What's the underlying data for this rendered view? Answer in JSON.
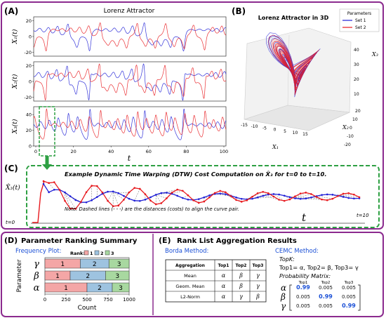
{
  "panelA": {
    "tag": "(A)",
    "title": "Lorenz Attractor",
    "xlabel": "t",
    "xticks": [
      "0",
      "20",
      "40",
      "60",
      "80",
      "100"
    ],
    "rows": [
      {
        "ylabel": "X₁(t)",
        "yticks": [
          "20",
          "0",
          "-20"
        ],
        "ylim": [
          -25,
          25
        ]
      },
      {
        "ylabel": "X₂(t)",
        "yticks": [
          "20",
          "0",
          "-20"
        ],
        "ylim": [
          -25,
          25
        ]
      },
      {
        "ylabel": "X₃(t)",
        "yticks": [
          "40",
          "20",
          "0"
        ],
        "ylim": [
          0,
          50
        ]
      }
    ]
  },
  "panelB": {
    "tag": "(B)",
    "title": "Lorenz Attractor in 3D",
    "legend_title": "Parameters",
    "legend": [
      "Set 1",
      "Set 2"
    ],
    "x1_label": "X₁",
    "x2_label": "X₂",
    "x3_label": "X₃",
    "x1_ticks": [
      "-15",
      "-10",
      "-5",
      "0",
      "5",
      "10",
      "15"
    ],
    "x2_ticks": [
      "20",
      "10",
      "0",
      "-10",
      "-20"
    ],
    "x3_ticks": [
      "10",
      "20",
      "30",
      "40"
    ]
  },
  "panelC": {
    "tag": "(C)",
    "title": "Example Dynamic Time Warping (DTW) Cost Computation on X̂₃ for t=0 to t=10.",
    "ylabel": "X̂₃(t)",
    "note": "Note: Dashed lines (- - -) are the distances (costs) to align the curve pair.",
    "t_label": "t",
    "t0": "t=0",
    "t10": "t=10"
  },
  "panelD": {
    "tag": "(D)",
    "title": "Parameter Ranking Summary",
    "subtitle": "Frequency Plot:",
    "legend_label": "Rank:",
    "legend": [
      "1",
      "2",
      "3"
    ],
    "ylabel": "Parameter",
    "xlabel": "Count",
    "xticks": [
      "0",
      "250",
      "500",
      "750",
      "1000"
    ],
    "rows": [
      {
        "name": "γ",
        "segments": [
          420,
          340,
          240
        ],
        "labels": [
          "1",
          "2",
          "3"
        ]
      },
      {
        "name": "β",
        "segments": [
          300,
          420,
          280
        ],
        "labels": [
          "1",
          "2",
          "3"
        ]
      },
      {
        "name": "α",
        "segments": [
          500,
          300,
          200
        ],
        "labels": [
          "1",
          "2",
          "3"
        ]
      }
    ],
    "colors": [
      "#f4a6a6",
      "#9ec3e0",
      "#a8d8a0"
    ]
  },
  "panelE": {
    "tag": "(E)",
    "title": "Rank List Aggregation Results",
    "borda_title": "Borda Method:",
    "table_headers": [
      "Aggregation",
      "Top1",
      "Top2",
      "Top3"
    ],
    "table_rows": [
      [
        "Mean",
        "α",
        "β",
        "γ"
      ],
      [
        "Geom. Mean",
        "α",
        "β",
        "γ"
      ],
      [
        "L2-Norm",
        "α",
        "γ",
        "β"
      ]
    ],
    "cemc_title": "CEMC Method:",
    "topk_label": "TopK:",
    "topk_text": "Top1= α, Top2= β, Top3= γ",
    "prob_label": "Probability Matrix:",
    "matrix_cols": [
      "Top1",
      "Top2",
      "Top3"
    ],
    "matrix_rows": [
      {
        "name": "α",
        "values": [
          "0.99",
          "0.005",
          "0.005"
        ]
      },
      {
        "name": "β",
        "values": [
          "0.005",
          "0.99",
          "0.005"
        ]
      },
      {
        "name": "γ",
        "values": [
          "0.005",
          "0.005",
          "0.99"
        ]
      }
    ]
  },
  "colors": {
    "set1": "#1f1fd6",
    "set2": "#e8191e",
    "frame_purple": "#8b2a8e",
    "green": "#2ea043",
    "blue_text": "#1a4fd6"
  },
  "chart_data": [
    {
      "type": "line",
      "title": "Lorenz Attractor",
      "xlabel": "t",
      "x_range": [
        0,
        100
      ],
      "series": [
        {
          "name": "Set 1"
        },
        {
          "name": "Set 2"
        }
      ]
    },
    {
      "type": "line",
      "title": "Lorenz Attractor in 3D",
      "series": [
        {
          "name": "Set 1"
        },
        {
          "name": "Set 2"
        }
      ]
    },
    {
      "type": "bar",
      "title": "Parameter Ranking Summary",
      "xlabel": "Count",
      "ylabel": "Parameter",
      "xlim": [
        0,
        1000
      ],
      "categories": [
        "γ",
        "β",
        "α"
      ],
      "series": [
        {
          "name": "1",
          "values": [
            420,
            300,
            500
          ]
        },
        {
          "name": "2",
          "values": [
            340,
            420,
            300
          ]
        },
        {
          "name": "3",
          "values": [
            240,
            280,
            200
          ]
        }
      ]
    }
  ]
}
